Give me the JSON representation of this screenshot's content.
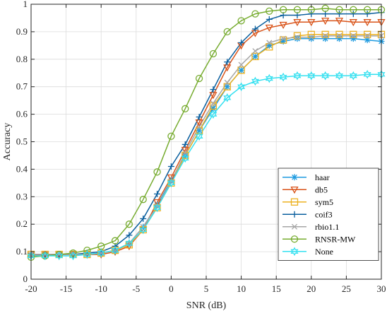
{
  "chart_data": {
    "type": "line",
    "xlabel": "SNR (dB)",
    "ylabel": "Accuracy",
    "xlim": [
      -20,
      30
    ],
    "ylim": [
      0,
      1
    ],
    "xticks": [
      "-20",
      "-15",
      "-10",
      "-5",
      "0",
      "5",
      "10",
      "15",
      "20",
      "25",
      "30"
    ],
    "yticks": [
      "0",
      "0.1",
      "0.2",
      "0.3",
      "0.4",
      "0.5",
      "0.6",
      "0.7",
      "0.8",
      "0.9",
      "1"
    ],
    "grid": true,
    "legend_position": "bottom-right",
    "x": [
      -20,
      -18,
      -16,
      -14,
      -12,
      -10,
      -8,
      -6,
      -4,
      -2,
      0,
      2,
      4,
      6,
      8,
      10,
      12,
      14,
      16,
      18,
      20,
      22,
      24,
      26,
      28,
      30
    ],
    "series": [
      {
        "name": "haar",
        "color": "#1f9be0",
        "marker": "asterisk",
        "values": [
          0.09,
          0.09,
          0.09,
          0.09,
          0.09,
          0.095,
          0.105,
          0.13,
          0.19,
          0.27,
          0.36,
          0.45,
          0.54,
          0.62,
          0.7,
          0.76,
          0.81,
          0.85,
          0.865,
          0.875,
          0.875,
          0.875,
          0.875,
          0.875,
          0.87,
          0.865
        ]
      },
      {
        "name": "db5",
        "color": "#d95319",
        "marker": "triangle-down",
        "values": [
          0.085,
          0.09,
          0.09,
          0.09,
          0.09,
          0.09,
          0.1,
          0.12,
          0.18,
          0.28,
          0.37,
          0.47,
          0.57,
          0.67,
          0.77,
          0.85,
          0.895,
          0.915,
          0.925,
          0.935,
          0.935,
          0.94,
          0.94,
          0.935,
          0.935,
          0.935
        ]
      },
      {
        "name": "sym5",
        "color": "#edb120",
        "marker": "square",
        "values": [
          0.09,
          0.09,
          0.09,
          0.09,
          0.09,
          0.095,
          0.105,
          0.125,
          0.18,
          0.26,
          0.35,
          0.45,
          0.54,
          0.63,
          0.7,
          0.76,
          0.81,
          0.845,
          0.87,
          0.885,
          0.89,
          0.89,
          0.89,
          0.89,
          0.89,
          0.89
        ]
      },
      {
        "name": "coif3",
        "color": "#0a5f9e",
        "marker": "plus",
        "values": [
          0.09,
          0.09,
          0.09,
          0.09,
          0.095,
          0.1,
          0.12,
          0.16,
          0.22,
          0.31,
          0.41,
          0.49,
          0.59,
          0.69,
          0.79,
          0.86,
          0.91,
          0.945,
          0.96,
          0.96,
          0.965,
          0.965,
          0.965,
          0.965,
          0.965,
          0.97
        ]
      },
      {
        "name": "rbio1.1",
        "color": "#a6a6a6",
        "marker": "x",
        "values": [
          0.09,
          0.09,
          0.09,
          0.09,
          0.09,
          0.095,
          0.105,
          0.13,
          0.19,
          0.265,
          0.355,
          0.46,
          0.555,
          0.64,
          0.715,
          0.78,
          0.83,
          0.86,
          0.875,
          0.88,
          0.88,
          0.885,
          0.885,
          0.885,
          0.885,
          0.885
        ]
      },
      {
        "name": "RNSR-MW",
        "color": "#77ac30",
        "marker": "circle",
        "values": [
          0.08,
          0.085,
          0.09,
          0.095,
          0.105,
          0.12,
          0.14,
          0.2,
          0.29,
          0.39,
          0.52,
          0.62,
          0.73,
          0.82,
          0.9,
          0.94,
          0.965,
          0.975,
          0.98,
          0.98,
          0.98,
          0.985,
          0.98,
          0.98,
          0.98,
          0.98
        ]
      },
      {
        "name": "None",
        "color": "#33e0f0",
        "marker": "hexagram",
        "values": [
          0.085,
          0.085,
          0.085,
          0.085,
          0.09,
          0.095,
          0.105,
          0.13,
          0.18,
          0.26,
          0.35,
          0.44,
          0.52,
          0.6,
          0.66,
          0.7,
          0.72,
          0.73,
          0.735,
          0.74,
          0.74,
          0.74,
          0.74,
          0.74,
          0.745,
          0.745
        ]
      }
    ]
  }
}
